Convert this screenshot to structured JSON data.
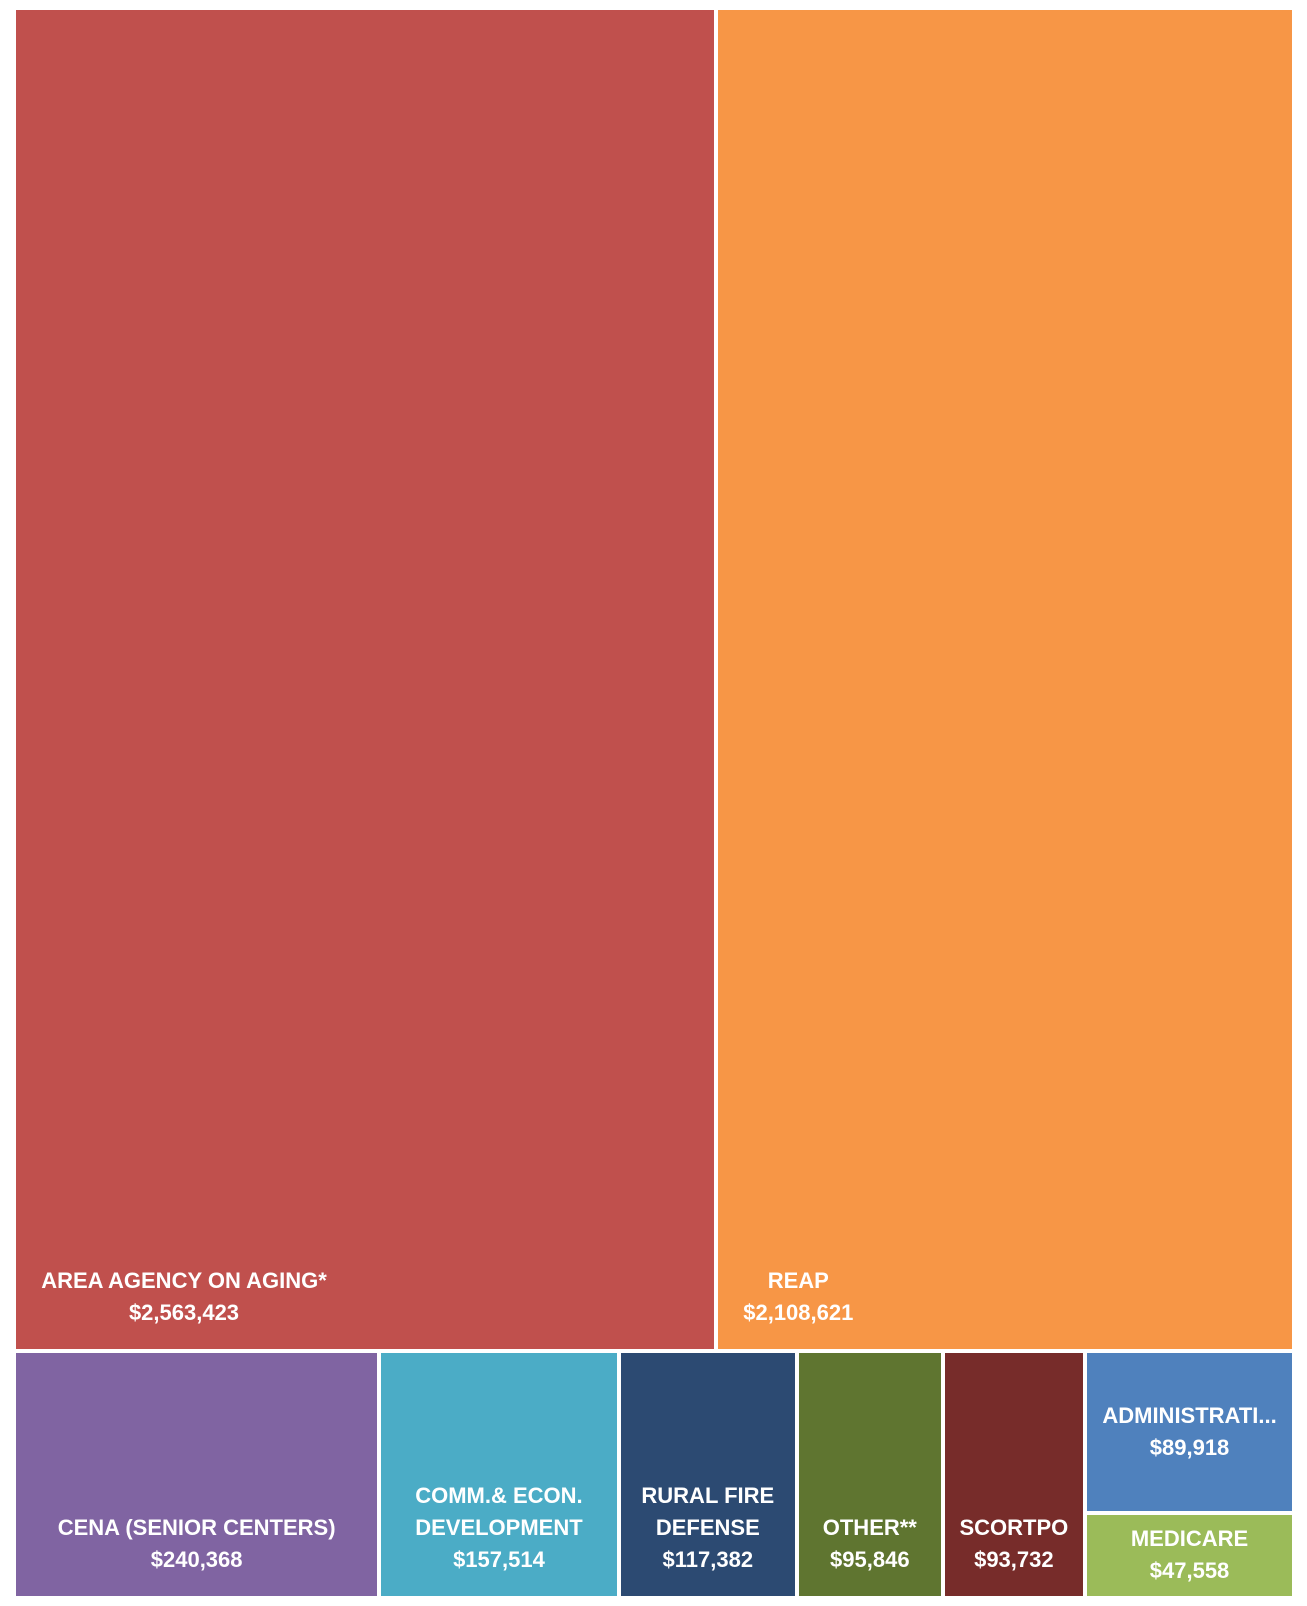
{
  "chart_data": {
    "type": "treemap",
    "title": "",
    "items": [
      {
        "label": "AREA AGENCY ON AGING*",
        "value_label": "$2,563,423",
        "value": 2563423,
        "color": "#C0504D"
      },
      {
        "label": "REAP",
        "value_label": "$2,108,621",
        "value": 2108621,
        "color": "#F79646"
      },
      {
        "label": "CENA (SENIOR CENTERS)",
        "value_label": "$240,368",
        "value": 240368,
        "color": "#8064A2"
      },
      {
        "label": "COMM.& ECON.\nDEVELOPMENT",
        "value_label": "$157,514",
        "value": 157514,
        "color": "#4BACC6"
      },
      {
        "label": "RURAL FIRE\nDEFENSE",
        "value_label": "$117,382",
        "value": 117382,
        "color": "#2C4A72"
      },
      {
        "label": "OTHER**",
        "value_label": "$95,846",
        "value": 95846,
        "color": "#5F7530"
      },
      {
        "label": "SCORTPO",
        "value_label": "$93,732",
        "value": 93732,
        "color": "#772C2A"
      },
      {
        "label": "ADMINISTRATI...",
        "value_label": "$89,918",
        "value": 89918,
        "color": "#4F81BD"
      },
      {
        "label": "MEDICARE",
        "value_label": "$47,558",
        "value": 47558,
        "color": "#9BBB59"
      }
    ]
  }
}
